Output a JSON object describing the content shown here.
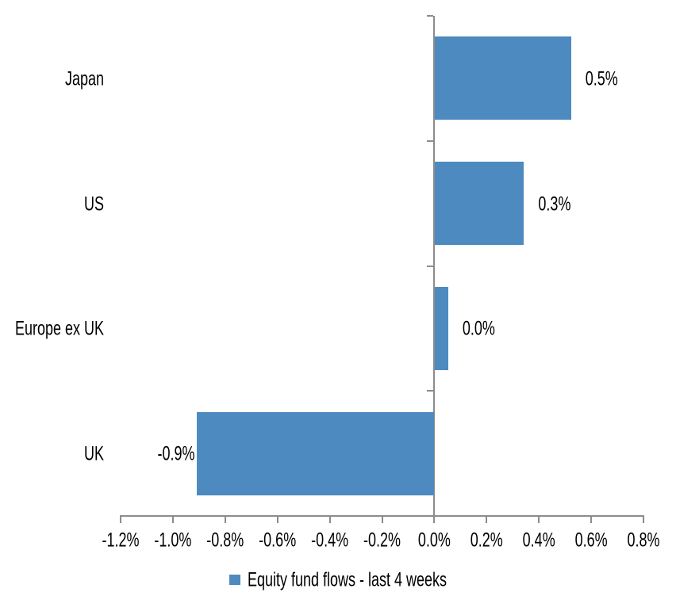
{
  "chart_data": {
    "type": "bar",
    "orientation": "horizontal",
    "title": "",
    "categories": [
      "Japan",
      "US",
      "Europe ex UK",
      "UK"
    ],
    "values": [
      0.5,
      0.3,
      0.0,
      -0.9
    ],
    "values_precise": [
      0.52,
      0.34,
      0.05,
      -0.91
    ],
    "value_labels": [
      "0.5%",
      "0.3%",
      "0.0%",
      "-0.9%"
    ],
    "legend": "Equity fund flows - last 4 weeks",
    "legend_position": "bottom",
    "xlim": [
      -1.2,
      0.8
    ],
    "x_tick_step": 0.2,
    "x_tick_labels": [
      "-1.2%",
      "-1.0%",
      "-0.8%",
      "-0.6%",
      "-0.4%",
      "-0.2%",
      "0.0%",
      "0.2%",
      "0.4%",
      "0.6%",
      "0.8%"
    ],
    "grid": false,
    "colors": {
      "bar": "#4C8AC0",
      "axis": "#8C8C8C",
      "text": "#000000",
      "background": "#FFFFFF"
    }
  }
}
